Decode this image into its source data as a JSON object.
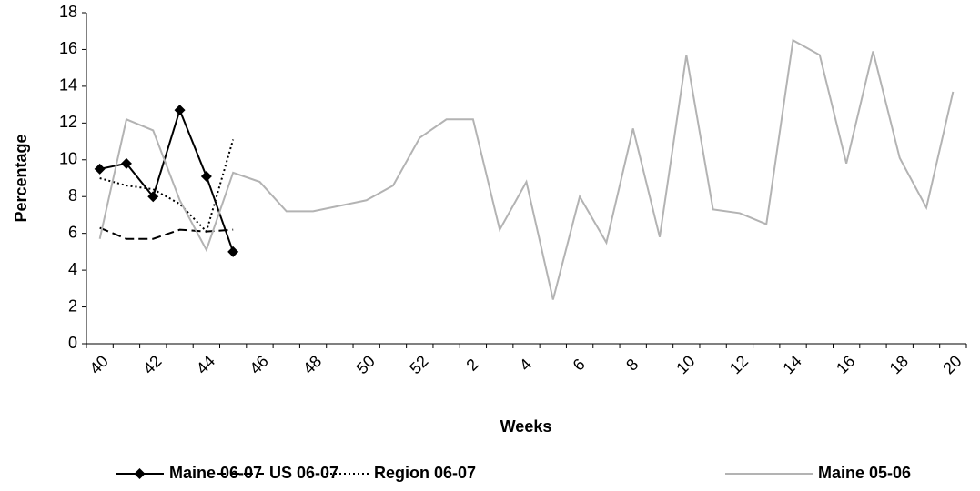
{
  "chart_data": {
    "type": "line",
    "x_label": "Weeks",
    "y_label": "Percentage",
    "categories": [
      "40",
      null,
      "42",
      null,
      "44",
      null,
      "46",
      null,
      "48",
      null,
      "50",
      null,
      "52",
      null,
      "2",
      null,
      "4",
      null,
      "6",
      null,
      "8",
      null,
      "10",
      null,
      "12",
      null,
      "14",
      null,
      "16",
      null,
      "18",
      null,
      "20"
    ],
    "ylim": [
      0,
      18
    ],
    "yticks": [
      0,
      2,
      4,
      6,
      8,
      10,
      12,
      14,
      16,
      18
    ],
    "legend": "bottom",
    "series": [
      {
        "name": "Maine 06-07",
        "color": "#000000",
        "dash": "solid",
        "marker": "diamond",
        "values": [
          9.5,
          9.8,
          8.0,
          12.7,
          9.1,
          5.0,
          null,
          null,
          null,
          null,
          null,
          null,
          null,
          null,
          null,
          null,
          null,
          null,
          null,
          null,
          null,
          null,
          null,
          null,
          null,
          null,
          null,
          null,
          null,
          null,
          null,
          null,
          null
        ]
      },
      {
        "name": "US 06-07",
        "color": "#000000",
        "dash": "dashed",
        "values": [
          6.3,
          5.7,
          5.7,
          6.2,
          6.1,
          6.2,
          null,
          null,
          null,
          null,
          null,
          null,
          null,
          null,
          null,
          null,
          null,
          null,
          null,
          null,
          null,
          null,
          null,
          null,
          null,
          null,
          null,
          null,
          null,
          null,
          null,
          null,
          null
        ]
      },
      {
        "name": "Region 06-07",
        "color": "#000000",
        "dash": "dotted",
        "values": [
          9.0,
          8.6,
          8.4,
          7.6,
          6.1,
          11.1,
          null,
          null,
          null,
          null,
          null,
          null,
          null,
          null,
          null,
          null,
          null,
          null,
          null,
          null,
          null,
          null,
          null,
          null,
          null,
          null,
          null,
          null,
          null,
          null,
          null,
          null,
          null
        ]
      },
      {
        "name": "Maine 05-06",
        "color": "#b3b3b3",
        "dash": "solid",
        "values": [
          5.7,
          12.2,
          11.6,
          7.8,
          5.1,
          9.3,
          8.8,
          7.2,
          7.2,
          7.5,
          7.8,
          8.6,
          11.2,
          12.2,
          12.2,
          6.2,
          8.8,
          2.4,
          8.0,
          5.5,
          11.7,
          5.8,
          15.7,
          7.3,
          7.1,
          6.5,
          16.5,
          15.7,
          9.8,
          15.9,
          10.1,
          7.4,
          13.7
        ]
      }
    ]
  }
}
